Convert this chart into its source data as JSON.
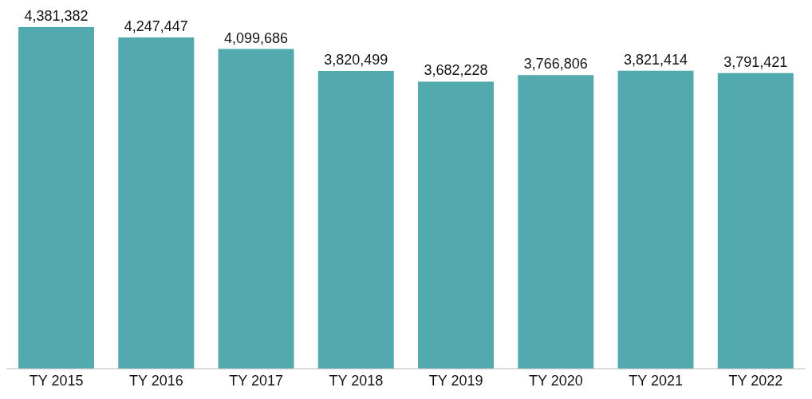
{
  "chart_data": {
    "type": "bar",
    "categories": [
      "TY 2015",
      "TY 2016",
      "TY 2017",
      "TY 2018",
      "TY 2019",
      "TY 2020",
      "TY 2021",
      "TY 2022"
    ],
    "values": [
      4381382,
      4247447,
      4099686,
      3820499,
      3682228,
      3766806,
      3821414,
      3791421
    ],
    "value_labels": [
      "4,381,382",
      "4,247,447",
      "4,099,686",
      "3,820,499",
      "3,682,228",
      "3,766,806",
      "3,821,414",
      "3,791,421"
    ],
    "color": "#52aaae"
  }
}
